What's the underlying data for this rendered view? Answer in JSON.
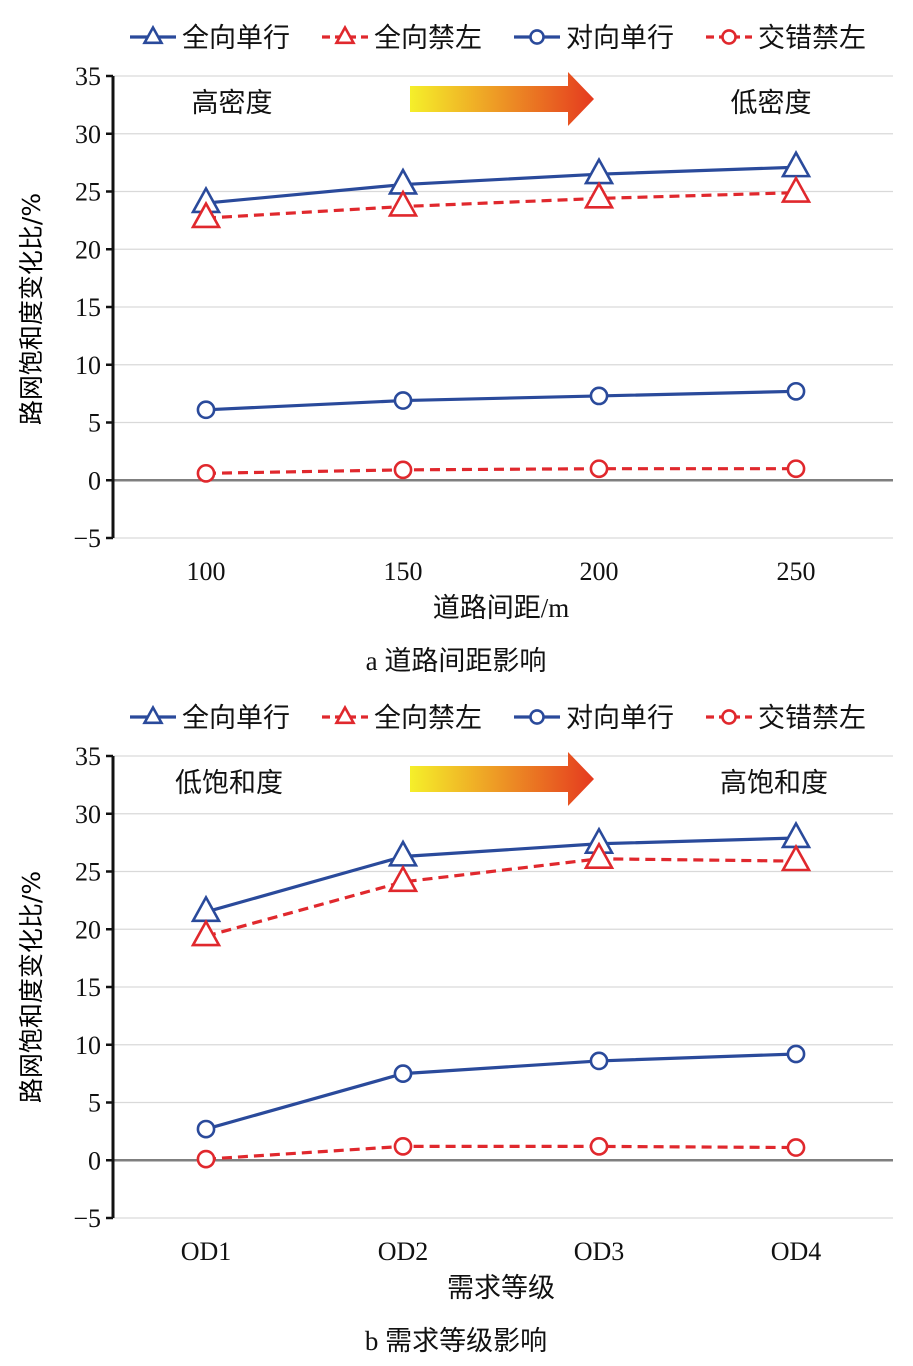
{
  "colors": {
    "solid_series": "#2a4a9b",
    "dashed_series": "#e0282d",
    "arrow_start": "#f5ef2a",
    "arrow_end": "#e53a1f"
  },
  "chart_data": [
    {
      "type": "line",
      "xlabel": "道路间距/m",
      "ylabel": "路网饱和度变化比/%",
      "caption": "a 道路间距影响",
      "ylim": [
        -5,
        35
      ],
      "yticks": [
        -5,
        0,
        5,
        10,
        15,
        20,
        25,
        30,
        35
      ],
      "categories": [
        "100",
        "150",
        "200",
        "250"
      ],
      "annotations": {
        "left": "高密度",
        "right": "低密度"
      },
      "grid": true,
      "legend_position": "top",
      "series": [
        {
          "name": "全向单行",
          "marker": "triangle",
          "dash": false,
          "values": [
            24.0,
            25.6,
            26.5,
            27.1
          ]
        },
        {
          "name": "全向禁左",
          "marker": "triangle",
          "dash": true,
          "values": [
            22.7,
            23.7,
            24.4,
            24.9
          ]
        },
        {
          "name": "对向单行",
          "marker": "circle",
          "dash": false,
          "values": [
            6.1,
            6.9,
            7.3,
            7.7
          ]
        },
        {
          "name": "交错禁左",
          "marker": "circle",
          "dash": true,
          "values": [
            0.6,
            0.9,
            1.0,
            1.0
          ]
        }
      ]
    },
    {
      "type": "line",
      "xlabel": "需求等级",
      "ylabel": "路网饱和度变化比/%",
      "caption": "b 需求等级影响",
      "ylim": [
        -5,
        35
      ],
      "yticks": [
        -5,
        0,
        5,
        10,
        15,
        20,
        25,
        30,
        35
      ],
      "categories": [
        "OD1",
        "OD2",
        "OD3",
        "OD4"
      ],
      "annotations": {
        "left": "低饱和度",
        "right": "高饱和度"
      },
      "grid": true,
      "legend_position": "top",
      "series": [
        {
          "name": "全向单行",
          "marker": "triangle",
          "dash": false,
          "values": [
            21.5,
            26.3,
            27.4,
            27.9
          ]
        },
        {
          "name": "全向禁左",
          "marker": "triangle",
          "dash": true,
          "values": [
            19.4,
            24.1,
            26.1,
            25.9
          ]
        },
        {
          "name": "对向单行",
          "marker": "circle",
          "dash": false,
          "values": [
            2.7,
            7.5,
            8.6,
            9.2
          ]
        },
        {
          "name": "交错禁左",
          "marker": "circle",
          "dash": true,
          "values": [
            0.1,
            1.2,
            1.2,
            1.1
          ]
        }
      ]
    }
  ]
}
